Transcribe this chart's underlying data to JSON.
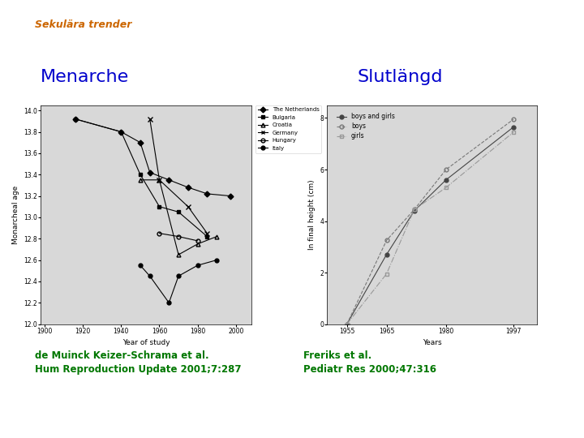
{
  "title": "Sekulära trender",
  "title_color": "#cc6600",
  "title_fontsize": 9,
  "menarche_title": "Menarche",
  "menarche_title_color": "#0000cc",
  "menarche_title_fontsize": 16,
  "slutlangd_title": "Slutlängd",
  "slutlangd_title_color": "#0000cc",
  "slutlangd_title_fontsize": 16,
  "ref_left": "de Muinck Keizer-Schrama et al.\nHum Reproduction Update 2001;7:287",
  "ref_right": "Freriks et al.\nPediatr Res 2000;47:316",
  "ref_color": "#007700",
  "ref_fontsize": 8.5,
  "menarche_series": {
    "Netherlands": {
      "x": [
        1916,
        1940,
        1950,
        1955,
        1965,
        1975,
        1985,
        1997
      ],
      "y": [
        13.92,
        13.8,
        13.7,
        13.42,
        13.35,
        13.28,
        13.22,
        13.2
      ],
      "marker": "D",
      "linestyle": "-",
      "color": "black",
      "markersize": 3.5,
      "label": "The Netherlands",
      "fillstyle": "full"
    },
    "Bulgaria": {
      "x": [
        1916,
        1940,
        1950,
        1960,
        1970,
        1985
      ],
      "y": [
        13.92,
        13.8,
        13.4,
        13.1,
        13.05,
        12.82
      ],
      "marker": "s",
      "linestyle": "-",
      "color": "black",
      "markersize": 3.5,
      "label": "Bulgaria",
      "fillstyle": "full"
    },
    "Croatia": {
      "x": [
        1950,
        1960,
        1970,
        1980,
        1990
      ],
      "y": [
        13.35,
        13.35,
        12.65,
        12.75,
        12.82
      ],
      "marker": "^",
      "linestyle": "-",
      "color": "black",
      "markersize": 3.5,
      "label": "Croatia",
      "fillstyle": "none"
    },
    "Germany": {
      "x": [
        1955,
        1960,
        1975,
        1985
      ],
      "y": [
        13.92,
        13.35,
        13.1,
        12.85
      ],
      "marker": "x",
      "linestyle": "-",
      "color": "black",
      "markersize": 4.5,
      "label": "Germany",
      "fillstyle": "full"
    },
    "Hungary": {
      "x": [
        1960,
        1970,
        1980
      ],
      "y": [
        12.85,
        12.82,
        12.78
      ],
      "marker": "o",
      "linestyle": "-",
      "color": "black",
      "markersize": 3.5,
      "label": "Hungary",
      "fillstyle": "none"
    },
    "Italy": {
      "x": [
        1950,
        1955,
        1965,
        1970,
        1980,
        1990
      ],
      "y": [
        12.55,
        12.45,
        12.2,
        12.45,
        12.55,
        12.6
      ],
      "marker": "o",
      "linestyle": "-",
      "color": "black",
      "markersize": 3.5,
      "label": "Italy",
      "fillstyle": "full"
    }
  },
  "menarche_xlabel": "Year of study",
  "menarche_ylabel": "Monarcheal age",
  "menarche_xlim": [
    1898,
    2008
  ],
  "menarche_ylim": [
    12.0,
    14.05
  ],
  "menarche_xticks": [
    1900,
    1920,
    1940,
    1960,
    1980,
    2000
  ],
  "menarche_ytick_labels": [
    "12",
    "12.2",
    "12.4",
    "12.6",
    "12.8",
    "13",
    "13.2",
    "13.4",
    "13.6",
    "13.8",
    "14"
  ],
  "menarche_yticks": [
    12,
    12.2,
    12.4,
    12.6,
    12.8,
    13,
    13.2,
    13.4,
    13.6,
    13.8,
    14
  ],
  "slutlangd_series": {
    "boys_and_girls": {
      "x": [
        1955,
        1965,
        1972,
        1980,
        1997
      ],
      "y": [
        0.0,
        2.7,
        4.4,
        5.6,
        7.65
      ],
      "marker": "o",
      "linestyle": "-",
      "color": "#444444",
      "markersize": 3.5,
      "label": "boys and girls",
      "fillstyle": "full"
    },
    "boys": {
      "x": [
        1955,
        1965,
        1972,
        1980,
        1997
      ],
      "y": [
        0.0,
        3.25,
        4.45,
        6.0,
        7.95
      ],
      "marker": "o",
      "linestyle": "--",
      "color": "#777777",
      "markersize": 3.5,
      "label": "boys",
      "fillstyle": "none"
    },
    "girls": {
      "x": [
        1955,
        1965,
        1972,
        1980,
        1997
      ],
      "y": [
        0.0,
        1.95,
        4.45,
        5.3,
        7.45
      ],
      "marker": "s",
      "linestyle": "-.",
      "color": "#999999",
      "markersize": 3.5,
      "label": "girls",
      "fillstyle": "none"
    }
  },
  "slutlangd_xlabel": "Years",
  "slutlangd_ylabel": "In final height (cm)",
  "slutlangd_xlim": [
    1950,
    2003
  ],
  "slutlangd_ylim": [
    0,
    8.5
  ],
  "slutlangd_xticks": [
    1955,
    1965,
    1980,
    1997
  ],
  "slutlangd_yticks": [
    0,
    2,
    4,
    6,
    8
  ]
}
